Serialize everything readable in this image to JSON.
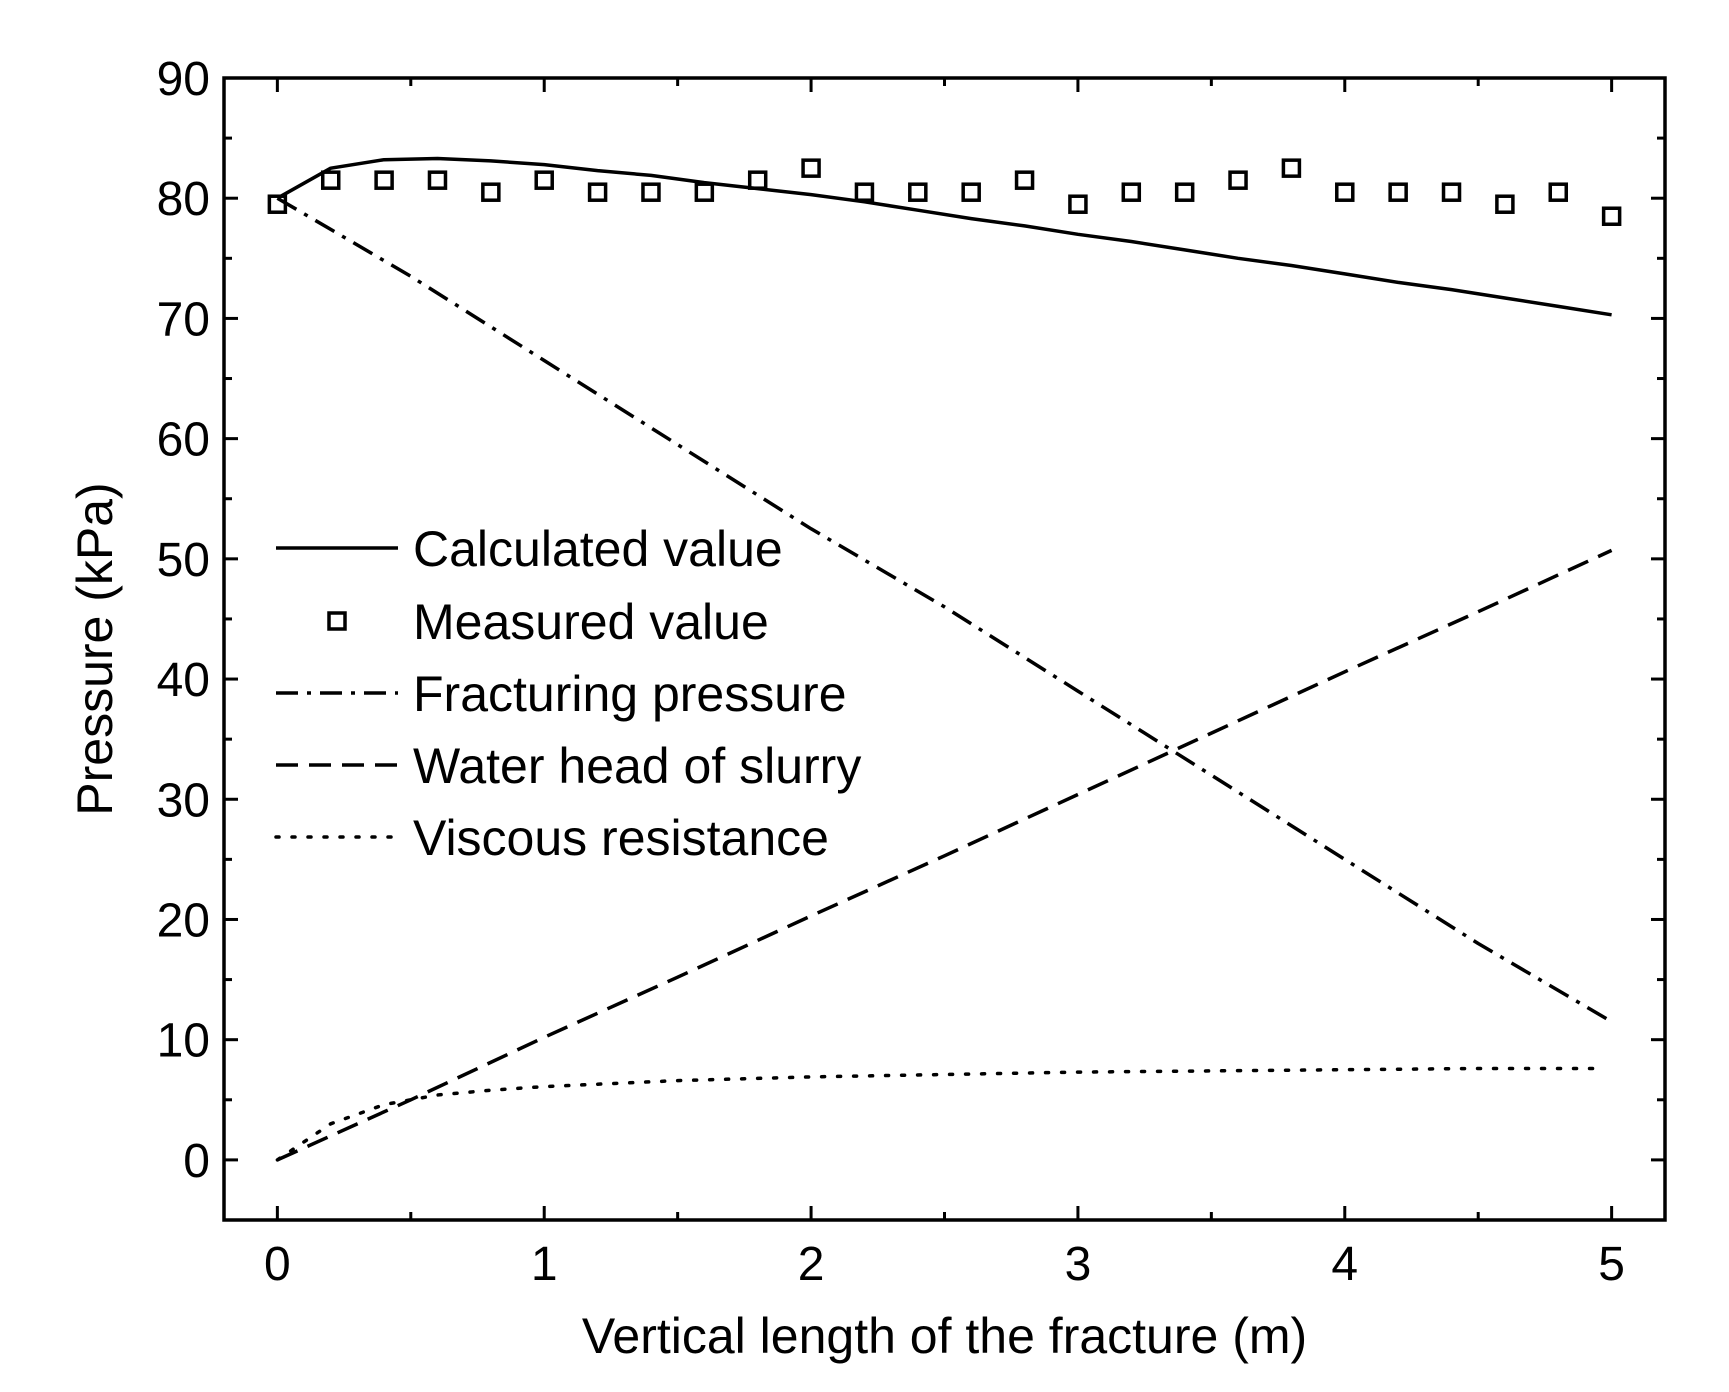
{
  "chart_data": {
    "type": "line",
    "title": "",
    "xlabel": "Vertical length of the fracture (m)",
    "ylabel": "Pressure (kPa)",
    "xlim": [
      -0.2,
      5.2
    ],
    "ylim": [
      -5,
      90
    ],
    "xticks": [
      0,
      1,
      2,
      3,
      4,
      5
    ],
    "xtick_labels": [
      "0",
      "1",
      "2",
      "3",
      "4",
      "5"
    ],
    "yticks": [
      0,
      10,
      20,
      30,
      40,
      50,
      60,
      70,
      80,
      90
    ],
    "ytick_labels": [
      "0",
      "10",
      "20",
      "30",
      "40",
      "50",
      "60",
      "70",
      "80",
      "90"
    ],
    "grid": false,
    "legend_position": "center-left",
    "series": [
      {
        "name": "Calculated value",
        "style": "solid",
        "marker": "none",
        "x": [
          0,
          0.2,
          0.4,
          0.6,
          0.8,
          1.0,
          1.2,
          1.4,
          1.6,
          1.8,
          2.0,
          2.2,
          2.4,
          2.6,
          2.8,
          3.0,
          3.2,
          3.4,
          3.6,
          3.8,
          4.0,
          4.2,
          4.4,
          4.6,
          4.8,
          5.0
        ],
        "y": [
          80.0,
          82.5,
          83.2,
          83.3,
          83.1,
          82.8,
          82.3,
          81.9,
          81.3,
          80.8,
          80.3,
          79.7,
          79.0,
          78.3,
          77.7,
          77.0,
          76.4,
          75.7,
          75.0,
          74.4,
          73.7,
          73.0,
          72.4,
          71.7,
          71.0,
          70.3
        ]
      },
      {
        "name": "Measured value",
        "style": "none",
        "marker": "open-square",
        "x": [
          0,
          0.2,
          0.4,
          0.6,
          0.8,
          1.0,
          1.2,
          1.4,
          1.6,
          1.8,
          2.0,
          2.2,
          2.4,
          2.6,
          2.8,
          3.0,
          3.2,
          3.4,
          3.6,
          3.8,
          4.0,
          4.2,
          4.4,
          4.6,
          4.8,
          5.0
        ],
        "y": [
          79.5,
          81.5,
          81.5,
          81.5,
          80.5,
          81.5,
          80.5,
          80.5,
          80.5,
          81.5,
          82.5,
          80.5,
          80.5,
          80.5,
          81.5,
          79.5,
          80.5,
          80.5,
          81.5,
          82.5,
          80.5,
          80.5,
          80.5,
          79.5,
          80.5,
          78.5
        ]
      },
      {
        "name": "Fracturing pressure",
        "style": "dash-dot",
        "marker": "none",
        "x": [
          0,
          0.5,
          1.0,
          1.5,
          2.0,
          2.5,
          3.0,
          3.5,
          4.0,
          4.5,
          5.0
        ],
        "y": [
          80.0,
          73.5,
          66.5,
          59.5,
          52.5,
          46.0,
          39.0,
          32.0,
          25.0,
          18.0,
          11.5
        ]
      },
      {
        "name": "Water head of slurry",
        "style": "dashed",
        "marker": "none",
        "x": [
          0,
          0.5,
          1.0,
          1.5,
          2.0,
          2.5,
          3.0,
          3.5,
          4.0,
          4.5,
          5.0
        ],
        "y": [
          0,
          5.0,
          10.2,
          15.2,
          20.3,
          25.3,
          30.4,
          35.5,
          40.6,
          45.6,
          50.7
        ]
      },
      {
        "name": "Viscous resistance",
        "style": "dotted",
        "marker": "none",
        "x": [
          0,
          0.2,
          0.4,
          0.6,
          0.8,
          1.0,
          1.5,
          2.0,
          2.5,
          3.0,
          3.5,
          4.0,
          4.5,
          4.95
        ],
        "y": [
          0,
          3.0,
          4.6,
          5.4,
          5.8,
          6.1,
          6.6,
          6.9,
          7.1,
          7.3,
          7.4,
          7.5,
          7.6,
          7.6
        ]
      }
    ]
  }
}
